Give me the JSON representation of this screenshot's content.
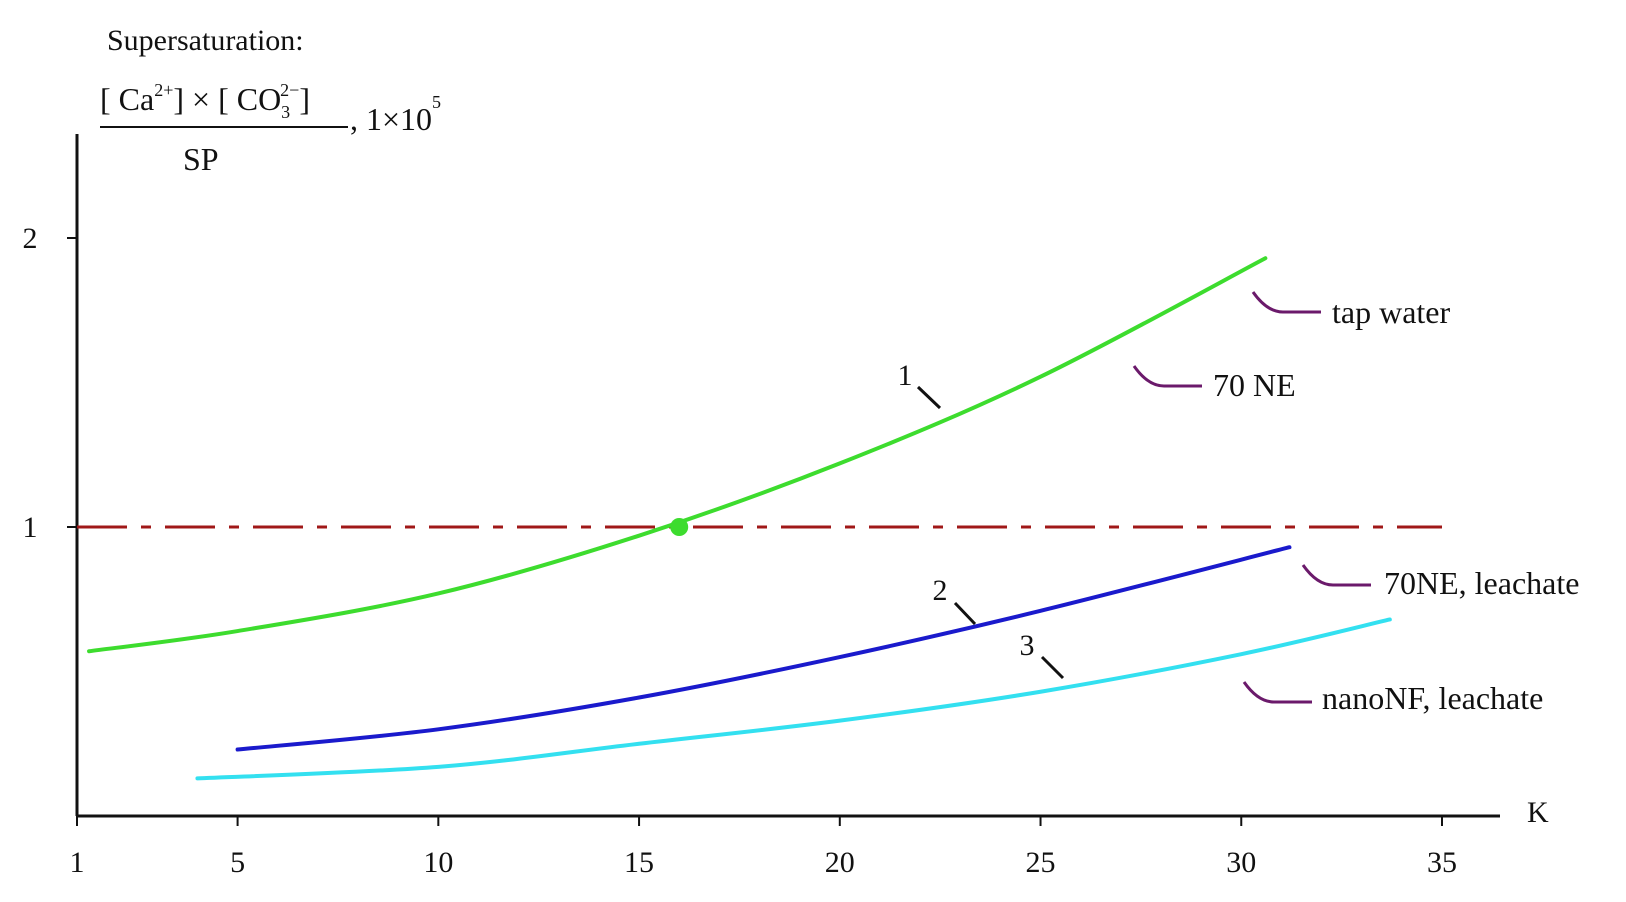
{
  "chart_data": {
    "type": "line",
    "ylabel": {
      "title": "Supersaturation:",
      "numerator_left": "[ Ca",
      "numerator_left_sup": "2+",
      "numerator_times": "] × [ CO",
      "numerator_right_sub": "3",
      "numerator_right_sup": "2−",
      "numerator_close": "]",
      "denominator": "SP",
      "scale": ", 1×10",
      "scale_sup": "5"
    },
    "xlabel": "K",
    "xlim": [
      1,
      35
    ],
    "ylim": [
      0,
      2.2
    ],
    "x_ticks": [
      "1",
      "5",
      "10",
      "15",
      "20",
      "25",
      "30",
      "35"
    ],
    "y_ticks": [
      "1",
      "2"
    ],
    "series": [
      {
        "name": "tap water",
        "number": "1",
        "color": "#3ddc2e",
        "x": [
          1.3,
          5,
          10,
          15,
          20,
          25,
          30.6
        ],
        "y": [
          0.57,
          0.64,
          0.77,
          0.97,
          1.22,
          1.52,
          1.93
        ]
      },
      {
        "name": "70NE, leachate",
        "number": "2",
        "color": "#1a1acc",
        "x": [
          5,
          10,
          15,
          20,
          25,
          31.2
        ],
        "y": [
          0.23,
          0.3,
          0.41,
          0.55,
          0.71,
          0.93
        ]
      },
      {
        "name": "nanoNF, leachate",
        "number": "3",
        "color": "#33e0f0",
        "x": [
          4,
          10,
          15,
          20,
          25,
          30,
          33.7
        ],
        "y": [
          0.13,
          0.17,
          0.25,
          0.33,
          0.43,
          0.56,
          0.68
        ]
      }
    ],
    "extra_legend": [
      {
        "label": "70 NE",
        "refers_to": "tap water"
      }
    ],
    "reference_line": {
      "y": 1,
      "style": "dash-dot",
      "color": "#a01818"
    },
    "marker": {
      "x": 16,
      "y": 1,
      "color": "#3ddc2e"
    }
  }
}
